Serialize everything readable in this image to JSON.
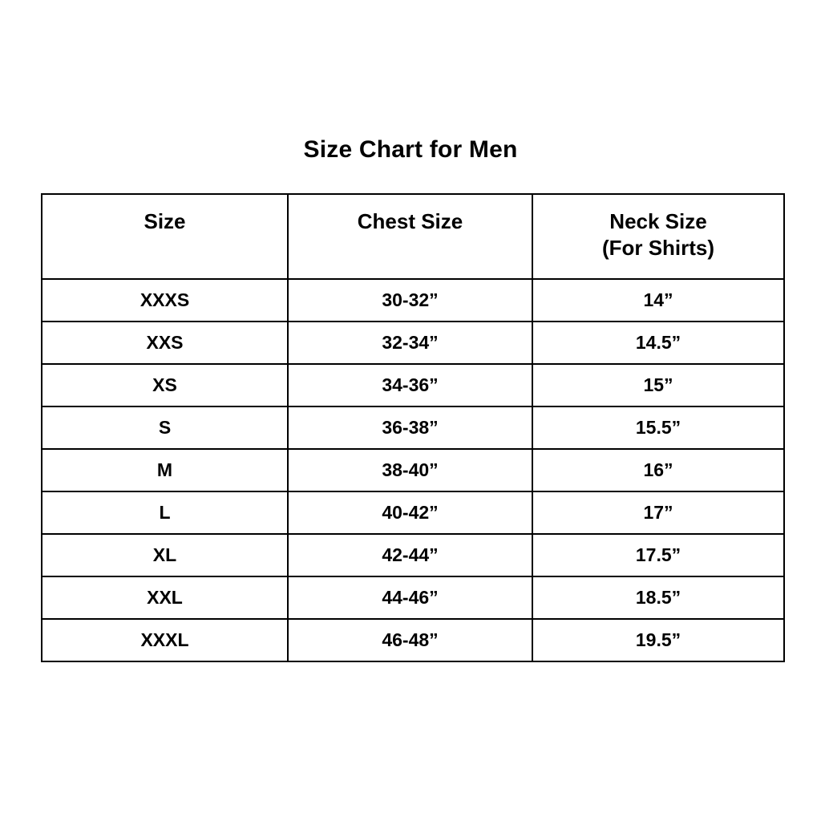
{
  "title": "Size Chart for Men",
  "chart_data": {
    "type": "table",
    "title": "Size Chart for Men",
    "columns": [
      "Size",
      "Chest Size",
      "Neck Size (For Shirts)"
    ],
    "header": {
      "size": "Size",
      "chest": "Chest Size",
      "neck_line1": "Neck Size",
      "neck_line2": "(For Shirts)"
    },
    "rows": [
      {
        "size": "XXXS",
        "chest": "30-32”",
        "neck": "14”"
      },
      {
        "size": "XXS",
        "chest": "32-34”",
        "neck": "14.5”"
      },
      {
        "size": "XS",
        "chest": "34-36”",
        "neck": "15”"
      },
      {
        "size": "S",
        "chest": "36-38”",
        "neck": "15.5”"
      },
      {
        "size": "M",
        "chest": "38-40”",
        "neck": "16”"
      },
      {
        "size": "L",
        "chest": "40-42”",
        "neck": "17”"
      },
      {
        "size": "XL",
        "chest": "42-44”",
        "neck": "17.5”"
      },
      {
        "size": "XXL",
        "chest": "44-46”",
        "neck": "18.5”"
      },
      {
        "size": "XXXL",
        "chest": "46-48”",
        "neck": "19.5”"
      }
    ],
    "colors": {
      "background": "#ffffff",
      "border": "#000000",
      "text": "#000000"
    }
  }
}
